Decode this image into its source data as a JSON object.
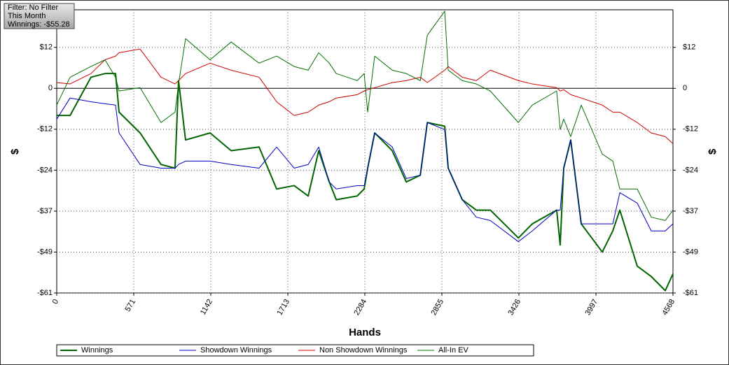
{
  "chart_data": {
    "type": "line",
    "annotations": [
      "Filter: No Filter",
      "This Month",
      "Winnings: -$55.28"
    ],
    "xlabel": "Hands",
    "ylabel": "$",
    "y2label": "$",
    "xlim": [
      0,
      4568
    ],
    "xticks": [
      0,
      571,
      1142,
      1713,
      2284,
      2855,
      3426,
      3997,
      4568
    ],
    "ylim": [
      -61,
      23.4
    ],
    "yticks": [
      {
        "value": 12.2,
        "label": "$12"
      },
      0,
      {
        "value": -12.2,
        "label": "-$12"
      },
      {
        "value": -24.4,
        "label": "-$24"
      },
      {
        "value": -36.6,
        "label": "-$37"
      },
      {
        "value": -48.8,
        "label": "-$49"
      },
      {
        "value": -61,
        "label": "-$61"
      }
    ],
    "y2lim": [
      -61,
      23.4
    ],
    "y2ticks": [
      {
        "value": 12.2,
        "label": "$12"
      },
      0,
      {
        "value": -12.2,
        "label": "-$12"
      },
      {
        "value": -24.4,
        "label": "-$24"
      },
      {
        "value": -36.6,
        "label": "-$37"
      },
      {
        "value": -48.8,
        "label": "-$49"
      },
      {
        "value": -61,
        "label": "-$61"
      }
    ],
    "grid": true,
    "legend": "bottom",
    "x": [
      0,
      99,
      254,
      358,
      436,
      462,
      618,
      773,
      877,
      903,
      955,
      1137,
      1293,
      1500,
      1630,
      1760,
      1864,
      1942,
      2020,
      2072,
      2227,
      2279,
      2305,
      2357,
      2487,
      2591,
      2695,
      2747,
      2876,
      2902,
      3006,
      3110,
      3214,
      3422,
      3525,
      3706,
      3732,
      3758,
      3810,
      3888,
      4044,
      4122,
      4174,
      4303,
      4407,
      4511,
      4568
    ],
    "series": [
      {
        "name": "Winnings",
        "color": "#006400",
        "values": [
          -8.1,
          -8.1,
          3.3,
          4.4,
          4.4,
          -7.1,
          -13.3,
          -22.7,
          -23.8,
          2.3,
          -15.4,
          -13.3,
          -18.6,
          -17.5,
          -30.0,
          -29.0,
          -32.1,
          -18.6,
          -27.9,
          -33.2,
          -32.1,
          -30.0,
          -23.8,
          -13.3,
          -18.6,
          -27.9,
          -25.9,
          -10.2,
          -11.3,
          -23.8,
          -33.2,
          -36.3,
          -36.3,
          -44.6,
          -40.4,
          -36.3,
          -46.7,
          -23.8,
          -15.4,
          -40.4,
          -48.8,
          -42.5,
          -36.3,
          -53.0,
          -56.1,
          -60.3,
          -55.28
        ]
      },
      {
        "name": "Showdown Winnings",
        "color": "#0000c0",
        "values": [
          -9.2,
          -2.9,
          -4.0,
          -4.6,
          -5.0,
          -13.3,
          -22.7,
          -23.8,
          -23.8,
          -22.7,
          -21.7,
          -21.7,
          -22.7,
          -23.8,
          -17.5,
          -23.8,
          -22.7,
          -17.5,
          -27.9,
          -30.0,
          -29.0,
          -29.0,
          -23.8,
          -13.3,
          -17.5,
          -26.9,
          -25.9,
          -10.2,
          -12.3,
          -23.8,
          -33.2,
          -38.4,
          -39.4,
          -45.7,
          -42.5,
          -36.3,
          -36.3,
          -23.8,
          -15.4,
          -40.4,
          -40.4,
          -40.4,
          -31.1,
          -34.2,
          -42.5,
          -42.5,
          -40.4
        ]
      },
      {
        "name": "Non Showdown Winnings",
        "color": "#d00000",
        "values": [
          1.7,
          1.3,
          4.4,
          8.5,
          9.6,
          10.6,
          11.7,
          3.3,
          1.3,
          2.3,
          4.4,
          7.5,
          5.4,
          3.3,
          -4.0,
          -8.1,
          -7.1,
          -5.0,
          -4.0,
          -2.9,
          -1.9,
          -0.8,
          -0.4,
          0.2,
          1.7,
          2.3,
          3.3,
          1.7,
          5.4,
          6.5,
          3.3,
          2.3,
          5.4,
          2.3,
          1.3,
          0.2,
          -0.8,
          -0.4,
          -1.9,
          -2.9,
          -5.0,
          -7.1,
          -7.1,
          -10.2,
          -13.3,
          -14.4,
          -16.5
        ]
      },
      {
        "name": "All-In EV",
        "color": "#007000",
        "values": [
          -5.0,
          3.3,
          6.5,
          8.5,
          3.3,
          -0.8,
          0.2,
          -10.2,
          -7.1,
          1.3,
          14.8,
          8.5,
          13.8,
          7.5,
          9.6,
          6.5,
          5.4,
          10.6,
          7.5,
          4.4,
          2.3,
          4.4,
          -7.1,
          9.6,
          5.4,
          4.4,
          2.3,
          15.8,
          23.0,
          5.4,
          2.3,
          1.3,
          -0.8,
          -10.2,
          -5.0,
          -0.8,
          -12.3,
          -9.2,
          -14.4,
          -5.0,
          -19.6,
          -21.7,
          -30.0,
          -30.0,
          -38.4,
          -39.4,
          -36.3
        ]
      }
    ]
  }
}
